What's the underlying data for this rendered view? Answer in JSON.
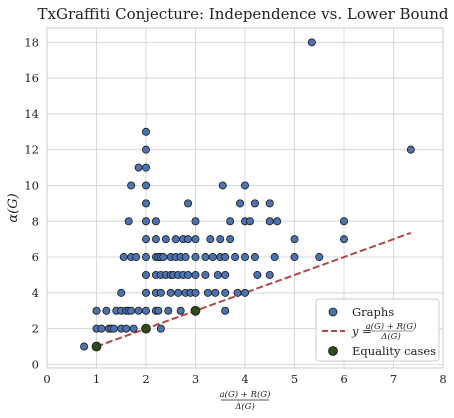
{
  "chart_data": {
    "type": "scatter",
    "title": "TxGraffiti Conjecture: Independence vs. Lower Bound",
    "ylabel": "α(G)",
    "xlabel": {
      "numerator": "a(G) + R(G)",
      "denominator": "Δ(G)"
    },
    "xlim": [
      0,
      8
    ],
    "ylim": [
      -0.2,
      18.8
    ],
    "xticks": [
      "0",
      "1",
      "2",
      "3",
      "4",
      "5",
      "6",
      "7",
      "8"
    ],
    "yticks": [
      "0",
      "2",
      "4",
      "6",
      "8",
      "10",
      "12",
      "14",
      "16",
      "18"
    ],
    "grid": true,
    "legend_position": "lower-right",
    "colors": {
      "graphs": "#4c72b0",
      "bound_line": "#b04a4a",
      "equality": "#2f4a13",
      "grid": "#d8d8d8"
    },
    "series": [
      {
        "name": "Graphs",
        "kind": "scatter",
        "points": [
          [
            0.75,
            1
          ],
          [
            1,
            1
          ],
          [
            1,
            2
          ],
          [
            1,
            3
          ],
          [
            1.1,
            2
          ],
          [
            1.2,
            3
          ],
          [
            1.25,
            2
          ],
          [
            1.3,
            2
          ],
          [
            1.35,
            2
          ],
          [
            1.4,
            3
          ],
          [
            1.5,
            2
          ],
          [
            1.5,
            3
          ],
          [
            1.5,
            4
          ],
          [
            1.55,
            6
          ],
          [
            1.6,
            2
          ],
          [
            1.6,
            3
          ],
          [
            1.65,
            3
          ],
          [
            1.65,
            8
          ],
          [
            1.7,
            3
          ],
          [
            1.7,
            6
          ],
          [
            1.7,
            10
          ],
          [
            1.75,
            2
          ],
          [
            1.8,
            6
          ],
          [
            1.85,
            3
          ],
          [
            1.85,
            11
          ],
          [
            2,
            2
          ],
          [
            2,
            3
          ],
          [
            2,
            4
          ],
          [
            2,
            5
          ],
          [
            2,
            6
          ],
          [
            2,
            7
          ],
          [
            2,
            8
          ],
          [
            2,
            9
          ],
          [
            2,
            10
          ],
          [
            2,
            11
          ],
          [
            2,
            12
          ],
          [
            2,
            13
          ],
          [
            2.2,
            3
          ],
          [
            2.2,
            4
          ],
          [
            2.2,
            5
          ],
          [
            2.2,
            6
          ],
          [
            2.2,
            7
          ],
          [
            2.2,
            8
          ],
          [
            2.25,
            3
          ],
          [
            2.25,
            6
          ],
          [
            2.3,
            2
          ],
          [
            2.3,
            4
          ],
          [
            2.3,
            5
          ],
          [
            2.3,
            6
          ],
          [
            2.35,
            6
          ],
          [
            2.4,
            5
          ],
          [
            2.4,
            7
          ],
          [
            2.45,
            3
          ],
          [
            2.5,
            4
          ],
          [
            2.5,
            5
          ],
          [
            2.5,
            6
          ],
          [
            2.55,
            5
          ],
          [
            2.6,
            6
          ],
          [
            2.6,
            7
          ],
          [
            2.65,
            4
          ],
          [
            2.65,
            5
          ],
          [
            2.7,
            3
          ],
          [
            2.7,
            6
          ],
          [
            2.75,
            5
          ],
          [
            2.75,
            7
          ],
          [
            2.8,
            4
          ],
          [
            2.8,
            6
          ],
          [
            2.85,
            5
          ],
          [
            2.85,
            7
          ],
          [
            2.85,
            9
          ],
          [
            2.9,
            4
          ],
          [
            3,
            3
          ],
          [
            3,
            4
          ],
          [
            3,
            5
          ],
          [
            3,
            6
          ],
          [
            3,
            7
          ],
          [
            3,
            8
          ],
          [
            3.2,
            5
          ],
          [
            3.2,
            6
          ],
          [
            3.25,
            4
          ],
          [
            3.3,
            7
          ],
          [
            3.35,
            6
          ],
          [
            3.4,
            4
          ],
          [
            3.45,
            5
          ],
          [
            3.5,
            6
          ],
          [
            3.5,
            7
          ],
          [
            3.55,
            10
          ],
          [
            3.6,
            3
          ],
          [
            3.6,
            4
          ],
          [
            3.6,
            5
          ],
          [
            3.6,
            6
          ],
          [
            3.7,
            7
          ],
          [
            3.7,
            8
          ],
          [
            3.8,
            6
          ],
          [
            3.85,
            4
          ],
          [
            3.9,
            9
          ],
          [
            4,
            4
          ],
          [
            4,
            6
          ],
          [
            4,
            8
          ],
          [
            4,
            10
          ],
          [
            4.1,
            8
          ],
          [
            4.2,
            6
          ],
          [
            4.2,
            9
          ],
          [
            4.25,
            5
          ],
          [
            4.5,
            5
          ],
          [
            4.5,
            8
          ],
          [
            4.5,
            9
          ],
          [
            4.6,
            6
          ],
          [
            4.65,
            8
          ],
          [
            5,
            6
          ],
          [
            5,
            7
          ],
          [
            5.35,
            18
          ],
          [
            5.5,
            6
          ],
          [
            6,
            7
          ],
          [
            6,
            8
          ],
          [
            7.35,
            12
          ]
        ]
      },
      {
        "name": "y = (a(G) + R(G)) / Δ(G)",
        "kind": "line",
        "points": [
          [
            1,
            1
          ],
          [
            7.35,
            7.35
          ]
        ]
      },
      {
        "name": "Equality cases",
        "kind": "scatter",
        "points": [
          [
            1,
            1
          ],
          [
            2,
            2
          ],
          [
            3,
            3
          ]
        ]
      }
    ]
  },
  "legend": {
    "graphs_label": "Graphs",
    "line_label_prefix": "y = ",
    "line_label_num": "a(G) + R(G)",
    "line_label_den": "Δ(G)",
    "equality_label": "Equality cases"
  }
}
